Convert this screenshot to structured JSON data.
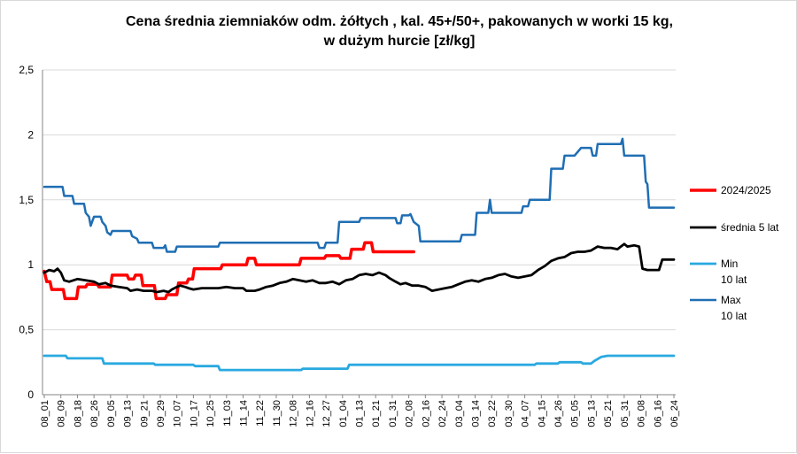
{
  "chart_data": {
    "type": "line",
    "title_lines": [
      "Cena średnia ziemniaków odm. żółtych , kal. 45+/50+, pakowanych w worki 15 kg,",
      "w dużym hurcie [zł/kg]"
    ],
    "ylim": [
      0,
      2.5
    ],
    "yticks": [
      0,
      0.5,
      1,
      1.5,
      2,
      2.5
    ],
    "ytick_labels": [
      "0",
      "0,5",
      "1",
      "1,5",
      "2",
      "2,5"
    ],
    "grid": "horizontal",
    "legend_position": "right",
    "categories": [
      "08_01",
      "08_09",
      "08_18",
      "08_26",
      "09_05",
      "09_13",
      "09_21",
      "09_29",
      "10_07",
      "10_17",
      "10_25",
      "11_03",
      "11_14",
      "11_22",
      "11_30",
      "12_08",
      "12_16",
      "12_27",
      "01_04",
      "01_13",
      "01_21",
      "01_31",
      "02_08",
      "02_16",
      "02_24",
      "03_04",
      "03_14",
      "03_22",
      "03_30",
      "04_07",
      "04_15",
      "04_26",
      "05_05",
      "05_13",
      "05_21",
      "05_31",
      "06_08",
      "06_16",
      "06_24"
    ],
    "series": [
      {
        "name": "2024/2025",
        "color": "#ff0000",
        "width": 3.5,
        "points": [
          [
            0,
            0.95
          ],
          [
            0.15,
            0.87
          ],
          [
            0.35,
            0.87
          ],
          [
            0.45,
            0.81
          ],
          [
            1.15,
            0.81
          ],
          [
            1.25,
            0.74
          ],
          [
            1.95,
            0.74
          ],
          [
            2.05,
            0.83
          ],
          [
            2.5,
            0.83
          ],
          [
            2.6,
            0.85
          ],
          [
            3.2,
            0.85
          ],
          [
            3.3,
            0.83
          ],
          [
            4.0,
            0.83
          ],
          [
            4.1,
            0.92
          ],
          [
            5.0,
            0.92
          ],
          [
            5.1,
            0.89
          ],
          [
            5.4,
            0.89
          ],
          [
            5.5,
            0.92
          ],
          [
            5.85,
            0.92
          ],
          [
            5.95,
            0.84
          ],
          [
            6.65,
            0.84
          ],
          [
            6.75,
            0.74
          ],
          [
            7.3,
            0.74
          ],
          [
            7.4,
            0.77
          ],
          [
            8.0,
            0.77
          ],
          [
            8.1,
            0.86
          ],
          [
            8.6,
            0.86
          ],
          [
            8.7,
            0.89
          ],
          [
            8.95,
            0.89
          ],
          [
            9.05,
            0.97
          ],
          [
            10.65,
            0.97
          ],
          [
            10.75,
            1.0
          ],
          [
            12.2,
            1.0
          ],
          [
            12.3,
            1.05
          ],
          [
            12.7,
            1.05
          ],
          [
            12.8,
            1.0
          ],
          [
            15.4,
            1.0
          ],
          [
            15.5,
            1.05
          ],
          [
            16.9,
            1.05
          ],
          [
            17.0,
            1.07
          ],
          [
            17.8,
            1.07
          ],
          [
            17.9,
            1.05
          ],
          [
            18.45,
            1.05
          ],
          [
            18.55,
            1.12
          ],
          [
            19.25,
            1.12
          ],
          [
            19.35,
            1.17
          ],
          [
            19.75,
            1.17
          ],
          [
            19.85,
            1.1
          ],
          [
            22.3,
            1.1
          ]
        ]
      },
      {
        "name": "średnia 5 lat",
        "color": "#000000",
        "width": 2.8,
        "points": [
          [
            0,
            0.94
          ],
          [
            0.3,
            0.96
          ],
          [
            0.6,
            0.95
          ],
          [
            0.8,
            0.97
          ],
          [
            1.0,
            0.94
          ],
          [
            1.2,
            0.88
          ],
          [
            1.5,
            0.87
          ],
          [
            2.0,
            0.89
          ],
          [
            2.5,
            0.88
          ],
          [
            3.0,
            0.87
          ],
          [
            3.3,
            0.85
          ],
          [
            3.7,
            0.86
          ],
          [
            4.0,
            0.84
          ],
          [
            4.5,
            0.83
          ],
          [
            5.0,
            0.82
          ],
          [
            5.2,
            0.8
          ],
          [
            5.6,
            0.81
          ],
          [
            6.0,
            0.8
          ],
          [
            6.5,
            0.8
          ],
          [
            6.8,
            0.79
          ],
          [
            7.2,
            0.8
          ],
          [
            7.5,
            0.79
          ],
          [
            7.7,
            0.81
          ],
          [
            8.0,
            0.83
          ],
          [
            8.2,
            0.84
          ],
          [
            8.5,
            0.83
          ],
          [
            8.7,
            0.82
          ],
          [
            9.0,
            0.81
          ],
          [
            9.5,
            0.82
          ],
          [
            10.0,
            0.82
          ],
          [
            10.5,
            0.82
          ],
          [
            11.0,
            0.83
          ],
          [
            11.5,
            0.82
          ],
          [
            12.0,
            0.82
          ],
          [
            12.2,
            0.8
          ],
          [
            12.7,
            0.8
          ],
          [
            13.0,
            0.81
          ],
          [
            13.4,
            0.83
          ],
          [
            13.8,
            0.84
          ],
          [
            14.2,
            0.86
          ],
          [
            14.6,
            0.87
          ],
          [
            15.0,
            0.89
          ],
          [
            15.4,
            0.88
          ],
          [
            15.8,
            0.87
          ],
          [
            16.2,
            0.88
          ],
          [
            16.6,
            0.86
          ],
          [
            17.0,
            0.86
          ],
          [
            17.4,
            0.87
          ],
          [
            17.8,
            0.85
          ],
          [
            18.2,
            0.88
          ],
          [
            18.6,
            0.89
          ],
          [
            19.0,
            0.92
          ],
          [
            19.4,
            0.93
          ],
          [
            19.8,
            0.92
          ],
          [
            20.2,
            0.94
          ],
          [
            20.6,
            0.92
          ],
          [
            20.8,
            0.9
          ],
          [
            21.2,
            0.87
          ],
          [
            21.5,
            0.85
          ],
          [
            21.8,
            0.86
          ],
          [
            22.2,
            0.84
          ],
          [
            22.6,
            0.84
          ],
          [
            23.0,
            0.83
          ],
          [
            23.4,
            0.8
          ],
          [
            23.8,
            0.81
          ],
          [
            24.2,
            0.82
          ],
          [
            24.6,
            0.83
          ],
          [
            25.0,
            0.85
          ],
          [
            25.4,
            0.87
          ],
          [
            25.8,
            0.88
          ],
          [
            26.2,
            0.87
          ],
          [
            26.6,
            0.89
          ],
          [
            27.0,
            0.9
          ],
          [
            27.4,
            0.92
          ],
          [
            27.8,
            0.93
          ],
          [
            28.2,
            0.91
          ],
          [
            28.6,
            0.9
          ],
          [
            29.0,
            0.91
          ],
          [
            29.4,
            0.92
          ],
          [
            29.8,
            0.96
          ],
          [
            30.2,
            0.99
          ],
          [
            30.6,
            1.03
          ],
          [
            31.0,
            1.05
          ],
          [
            31.4,
            1.06
          ],
          [
            31.8,
            1.09
          ],
          [
            32.2,
            1.1
          ],
          [
            32.6,
            1.1
          ],
          [
            33.0,
            1.11
          ],
          [
            33.4,
            1.14
          ],
          [
            33.8,
            1.13
          ],
          [
            34.2,
            1.13
          ],
          [
            34.6,
            1.12
          ],
          [
            34.8,
            1.14
          ],
          [
            35.0,
            1.16
          ],
          [
            35.2,
            1.14
          ],
          [
            35.6,
            1.15
          ],
          [
            35.9,
            1.14
          ],
          [
            36.1,
            0.97
          ],
          [
            36.4,
            0.96
          ],
          [
            36.8,
            0.96
          ],
          [
            37.1,
            0.96
          ],
          [
            37.3,
            1.04
          ],
          [
            37.6,
            1.04
          ],
          [
            38.0,
            1.04
          ]
        ]
      },
      {
        "name": "Min\n10 lat",
        "color": "#29a9e0",
        "width": 2.8,
        "points": [
          [
            0,
            0.3
          ],
          [
            1.3,
            0.3
          ],
          [
            1.4,
            0.28
          ],
          [
            3.5,
            0.28
          ],
          [
            3.6,
            0.24
          ],
          [
            6.6,
            0.24
          ],
          [
            6.7,
            0.23
          ],
          [
            9.0,
            0.23
          ],
          [
            9.1,
            0.22
          ],
          [
            10.5,
            0.22
          ],
          [
            10.6,
            0.19
          ],
          [
            15.5,
            0.19
          ],
          [
            15.6,
            0.2
          ],
          [
            18.3,
            0.2
          ],
          [
            18.4,
            0.23
          ],
          [
            29.6,
            0.23
          ],
          [
            29.7,
            0.24
          ],
          [
            31.0,
            0.24
          ],
          [
            31.1,
            0.25
          ],
          [
            32.4,
            0.25
          ],
          [
            32.5,
            0.24
          ],
          [
            33.0,
            0.24
          ],
          [
            33.2,
            0.26
          ],
          [
            33.6,
            0.29
          ],
          [
            34.0,
            0.3
          ],
          [
            38.0,
            0.3
          ]
        ]
      },
      {
        "name": "Max\n10 lat",
        "color": "#1f6eb4",
        "width": 2.5,
        "points": [
          [
            0,
            1.6
          ],
          [
            1.1,
            1.6
          ],
          [
            1.2,
            1.53
          ],
          [
            1.7,
            1.53
          ],
          [
            1.8,
            1.47
          ],
          [
            2.4,
            1.47
          ],
          [
            2.5,
            1.4
          ],
          [
            2.7,
            1.37
          ],
          [
            2.8,
            1.3
          ],
          [
            3.0,
            1.37
          ],
          [
            3.4,
            1.37
          ],
          [
            3.5,
            1.33
          ],
          [
            3.7,
            1.3
          ],
          [
            3.8,
            1.25
          ],
          [
            4.0,
            1.23
          ],
          [
            4.1,
            1.26
          ],
          [
            5.2,
            1.26
          ],
          [
            5.3,
            1.22
          ],
          [
            5.6,
            1.2
          ],
          [
            5.7,
            1.17
          ],
          [
            6.5,
            1.17
          ],
          [
            6.6,
            1.13
          ],
          [
            7.2,
            1.13
          ],
          [
            7.3,
            1.15
          ],
          [
            7.4,
            1.1
          ],
          [
            7.9,
            1.1
          ],
          [
            8.0,
            1.14
          ],
          [
            10.5,
            1.14
          ],
          [
            10.6,
            1.17
          ],
          [
            16.5,
            1.17
          ],
          [
            16.6,
            1.13
          ],
          [
            16.9,
            1.13
          ],
          [
            17.0,
            1.17
          ],
          [
            17.7,
            1.17
          ],
          [
            17.8,
            1.33
          ],
          [
            19.0,
            1.33
          ],
          [
            19.1,
            1.36
          ],
          [
            21.2,
            1.36
          ],
          [
            21.3,
            1.32
          ],
          [
            21.5,
            1.32
          ],
          [
            21.6,
            1.38
          ],
          [
            22.0,
            1.38
          ],
          [
            22.1,
            1.39
          ],
          [
            22.3,
            1.33
          ],
          [
            22.6,
            1.3
          ],
          [
            22.7,
            1.18
          ],
          [
            25.1,
            1.18
          ],
          [
            25.2,
            1.23
          ],
          [
            26.0,
            1.23
          ],
          [
            26.1,
            1.4
          ],
          [
            26.8,
            1.4
          ],
          [
            26.9,
            1.5
          ],
          [
            27.0,
            1.4
          ],
          [
            28.8,
            1.4
          ],
          [
            28.9,
            1.45
          ],
          [
            29.2,
            1.45
          ],
          [
            29.3,
            1.5
          ],
          [
            30.5,
            1.5
          ],
          [
            30.6,
            1.74
          ],
          [
            31.3,
            1.74
          ],
          [
            31.4,
            1.84
          ],
          [
            32.0,
            1.84
          ],
          [
            32.2,
            1.87
          ],
          [
            32.4,
            1.9
          ],
          [
            33.0,
            1.9
          ],
          [
            33.1,
            1.84
          ],
          [
            33.3,
            1.84
          ],
          [
            33.4,
            1.93
          ],
          [
            34.8,
            1.93
          ],
          [
            34.9,
            1.97
          ],
          [
            35.0,
            1.84
          ],
          [
            36.2,
            1.84
          ],
          [
            36.3,
            1.64
          ],
          [
            36.4,
            1.62
          ],
          [
            36.5,
            1.44
          ],
          [
            38.0,
            1.44
          ]
        ]
      }
    ]
  }
}
